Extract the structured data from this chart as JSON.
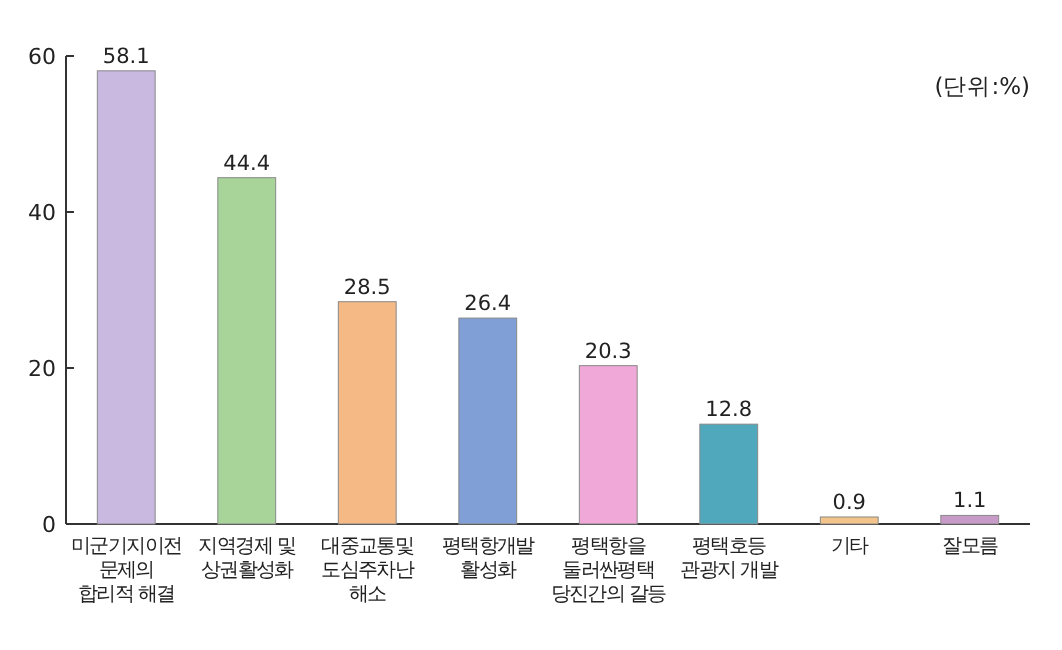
{
  "chart_data": {
    "type": "bar",
    "categories": [
      "미군기지이전\n문제의\n합리적 해결",
      "지역경제 및\n상권활성화",
      "대중교통및\n도심주차난\n해소",
      "평택항개발\n활성화",
      "평택항을\n둘러싼평택\n당진간의 갈등",
      "평택호등\n관광지 개발",
      "기타",
      "잘모름"
    ],
    "values": [
      58.1,
      44.4,
      28.5,
      26.4,
      20.3,
      12.8,
      0.9,
      1.1
    ],
    "colors": [
      "#c9b8e0",
      "#a8d49a",
      "#f5b985",
      "#7f9fd6",
      "#f0a8d8",
      "#4fa8bc",
      "#f2c48a",
      "#c89ac8"
    ],
    "data_labels": true,
    "ylim": [
      0,
      60
    ],
    "yticks": [
      0,
      20,
      40,
      60
    ],
    "annotations": [
      "(단위:%)"
    ],
    "grid": false
  }
}
